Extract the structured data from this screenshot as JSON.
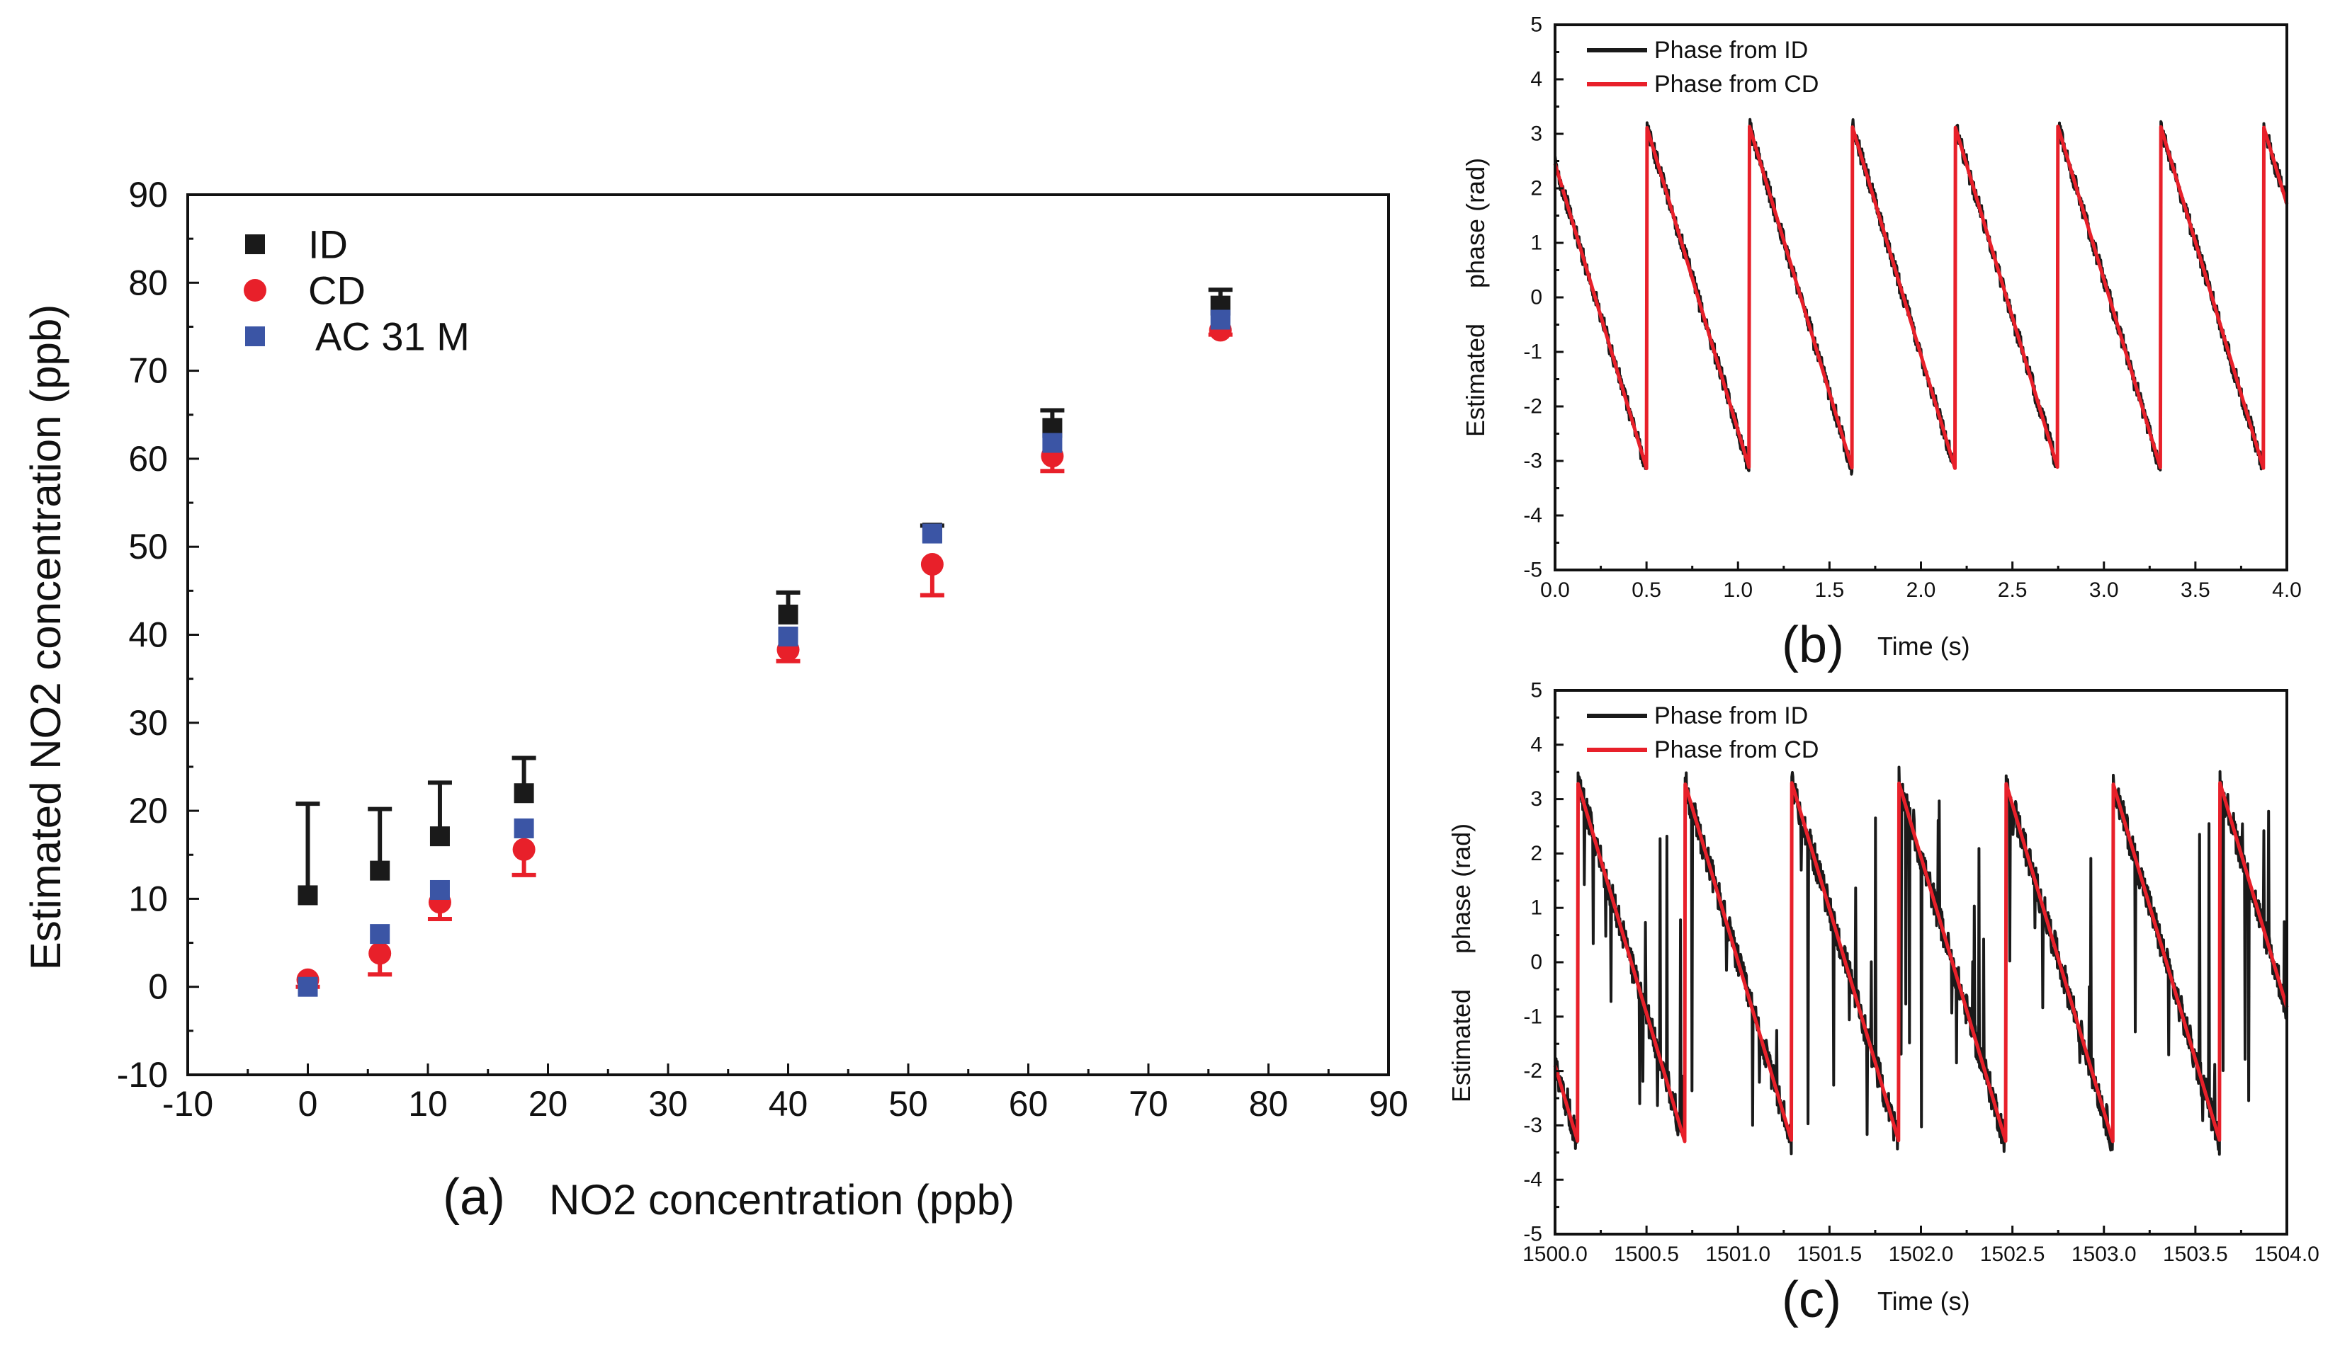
{
  "chart_data": [
    {
      "type": "scatter",
      "panel_label": "(a)",
      "xlabel": "NO2 concentration (ppb)",
      "ylabel": "Estimated NO2 concentration (ppb)",
      "xlim": [
        -10,
        90
      ],
      "ylim": [
        -10,
        90
      ],
      "xticks": [
        "-10",
        "0",
        "10",
        "20",
        "30",
        "40",
        "50",
        "60",
        "70",
        "80",
        "90"
      ],
      "yticks": [
        "-10",
        "0",
        "10",
        "20",
        "30",
        "40",
        "50",
        "60",
        "70",
        "80",
        "90"
      ],
      "legend_position": "top-left",
      "series": [
        {
          "name": "ID",
          "marker": "square",
          "color": "#1a1a1a",
          "points": [
            {
              "x": 0,
              "y": 10.4,
              "err": 10.4
            },
            {
              "x": 6,
              "y": 13.2,
              "err": 7.0
            },
            {
              "x": 11,
              "y": 17.1,
              "err": 6.1
            },
            {
              "x": 18,
              "y": 22.0,
              "err": 4.0
            },
            {
              "x": 40,
              "y": 42.3,
              "err": 2.5
            },
            {
              "x": 52,
              "y": 51.6,
              "err": 0.8
            },
            {
              "x": 62,
              "y": 63.5,
              "err": 2.0
            },
            {
              "x": 76,
              "y": 77.4,
              "err": 1.8
            }
          ]
        },
        {
          "name": "CD",
          "marker": "circle",
          "color": "#e8202a",
          "points": [
            {
              "x": 0,
              "y": 0.8,
              "err": 0.8
            },
            {
              "x": 6,
              "y": 3.8,
              "err": 2.4
            },
            {
              "x": 11,
              "y": 9.6,
              "err": 1.9
            },
            {
              "x": 18,
              "y": 15.6,
              "err": 2.9
            },
            {
              "x": 40,
              "y": 38.3,
              "err": 1.3
            },
            {
              "x": 52,
              "y": 48.0,
              "err": 3.5
            },
            {
              "x": 62,
              "y": 60.3,
              "err": 1.7
            },
            {
              "x": 76,
              "y": 74.6,
              "err": 0.5
            }
          ]
        },
        {
          "name": "AC 31 M",
          "marker": "square",
          "color": "#3b55a5",
          "points": [
            {
              "x": 0,
              "y": 0.0
            },
            {
              "x": 6,
              "y": 6.0
            },
            {
              "x": 11,
              "y": 11.0
            },
            {
              "x": 18,
              "y": 18.0
            },
            {
              "x": 40,
              "y": 39.8
            },
            {
              "x": 52,
              "y": 51.5
            },
            {
              "x": 62,
              "y": 61.8
            },
            {
              "x": 76,
              "y": 75.8
            }
          ]
        }
      ]
    },
    {
      "type": "line",
      "panel_label": "(b)",
      "xlabel": "Time (s)",
      "ylabel": "Estimated     phase (rad)",
      "xlim": [
        0.0,
        4.0
      ],
      "ylim": [
        -5,
        5
      ],
      "xticks": [
        "0.0",
        "0.5",
        "1.0",
        "1.5",
        "2.0",
        "2.5",
        "3.0",
        "3.5",
        "4.0"
      ],
      "yticks": [
        "-5",
        "-4",
        "-3",
        "-2",
        "-1",
        "0",
        "1",
        "2",
        "3",
        "4",
        "5"
      ],
      "legend_position": "top-left",
      "series": [
        {
          "name": "Phase from ID",
          "color": "#1a1a1a",
          "noise": "low",
          "ramp": {
            "period": 0.562,
            "start_time": 0.0,
            "start_phase": 2.45,
            "wrap_low": -3.14,
            "wrap_high": 3.14
          }
        },
        {
          "name": "Phase from CD",
          "color": "#e8202a",
          "noise": "none",
          "ramp": {
            "period": 0.562,
            "start_time": 0.0,
            "start_phase": 2.45,
            "wrap_low": -3.14,
            "wrap_high": 3.14
          }
        }
      ]
    },
    {
      "type": "line",
      "panel_label": "(c)",
      "xlabel": "Time (s)",
      "ylabel": "Estimated     phase (rad)",
      "xlim": [
        1500.0,
        1504.0
      ],
      "ylim": [
        -5,
        5
      ],
      "xticks": [
        "1500.0",
        "1500.5",
        "1501.0",
        "1501.5",
        "1502.0",
        "1502.5",
        "1503.0",
        "1503.5",
        "1504.0"
      ],
      "yticks": [
        "-5",
        "-4",
        "-3",
        "-2",
        "-1",
        "0",
        "1",
        "2",
        "3",
        "4",
        "5"
      ],
      "legend_position": "top-left",
      "series": [
        {
          "name": "Phase from ID",
          "color": "#1a1a1a",
          "noise": "high",
          "ramp": {
            "period": 0.585,
            "start_time": 1500.0,
            "start_phase": -1.9,
            "wrap_low": -3.3,
            "wrap_high": 3.3
          }
        },
        {
          "name": "Phase from CD",
          "color": "#e8202a",
          "noise": "none",
          "ramp": {
            "period": 0.585,
            "start_time": 1500.0,
            "start_phase": -1.9,
            "wrap_low": -3.3,
            "wrap_high": 3.3
          }
        }
      ]
    }
  ]
}
